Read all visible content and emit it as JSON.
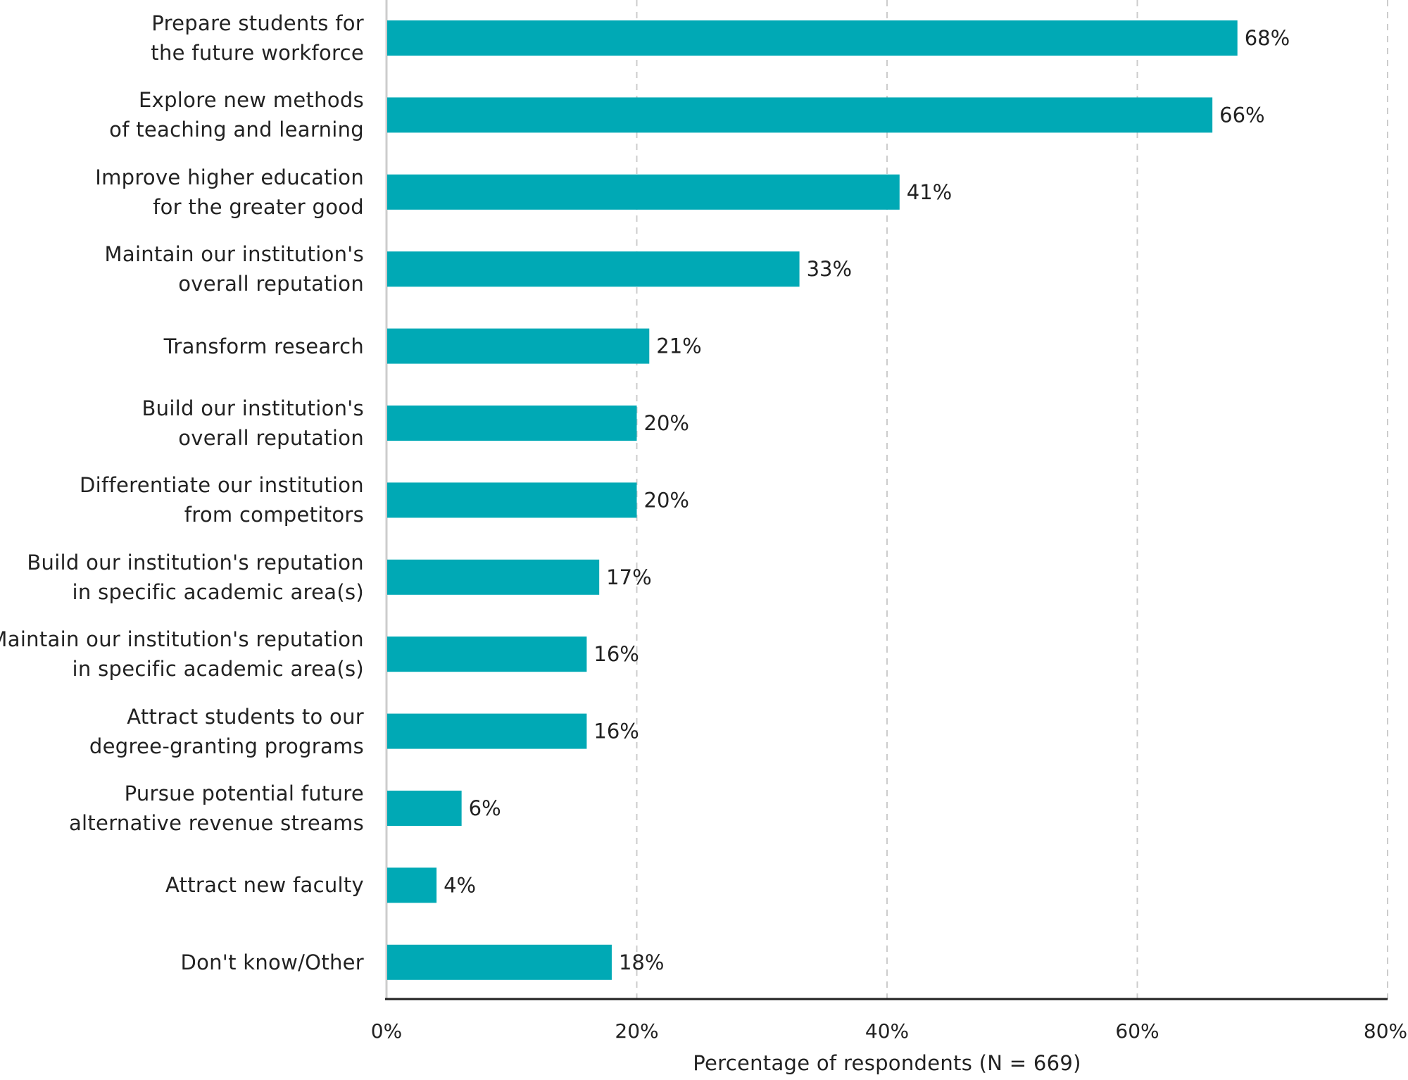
{
  "chart_data": {
    "type": "bar",
    "orientation": "horizontal",
    "categories": [
      [
        "Prepare students for",
        "the future workforce"
      ],
      [
        "Explore new methods",
        "of teaching and learning"
      ],
      [
        "Improve higher education",
        "for the greater good"
      ],
      [
        "Maintain our institution's",
        "overall reputation"
      ],
      [
        "Transform research"
      ],
      [
        "Build our institution's",
        "overall reputation"
      ],
      [
        "Differentiate our institution",
        "from competitors"
      ],
      [
        "Build our institution's reputation",
        "in specific academic area(s)"
      ],
      [
        "Maintain our institution's reputation",
        "in specific academic area(s)"
      ],
      [
        "Attract students to our",
        "degree-granting programs"
      ],
      [
        "Pursue potential future",
        "alternative revenue streams"
      ],
      [
        "Attract new faculty"
      ],
      [
        "Don't know/Other"
      ]
    ],
    "values": [
      68,
      66,
      41,
      33,
      21,
      20,
      20,
      17,
      16,
      16,
      6,
      4,
      18
    ],
    "value_labels": [
      "68%",
      "66%",
      "41%",
      "33%",
      "21%",
      "20%",
      "20%",
      "17%",
      "16%",
      "16%",
      "6%",
      "4%",
      "18%"
    ],
    "xlim": [
      0,
      80
    ],
    "xticks": [
      0,
      20,
      40,
      60,
      80
    ],
    "xtick_labels": [
      "0%",
      "20%",
      "40%",
      "60%",
      "80%"
    ],
    "xlabel": "Percentage of respondents (N = 669)",
    "grid": "vertical dashed",
    "bar_color": "#00A9B5",
    "grid_color": "#cccccc",
    "axis_color": "#222222"
  }
}
